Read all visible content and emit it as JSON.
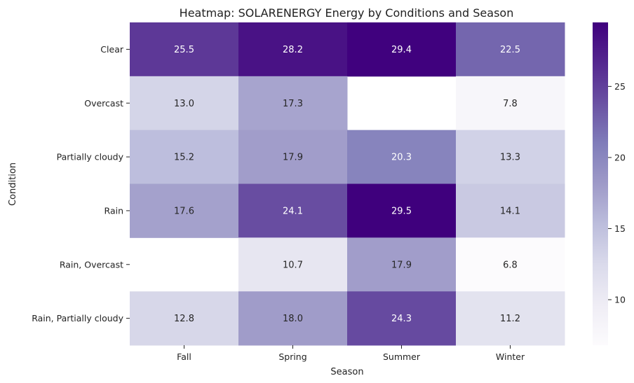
{
  "chart_data": {
    "type": "heatmap",
    "title": "Heatmap: SOLARENERGY Energy by Conditions and Season",
    "xlabel": "Season",
    "ylabel": "Condition",
    "columns": [
      "Fall",
      "Spring",
      "Summer",
      "Winter"
    ],
    "rows": [
      "Clear",
      "Overcast",
      "Partially cloudy",
      "Rain",
      "Rain, Overcast",
      "Rain, Partially cloudy"
    ],
    "values": [
      [
        25.5,
        28.2,
        29.4,
        22.5
      ],
      [
        13.0,
        17.3,
        null,
        7.8
      ],
      [
        15.2,
        17.9,
        20.3,
        13.3
      ],
      [
        17.6,
        24.1,
        29.5,
        14.1
      ],
      [
        null,
        10.7,
        17.9,
        6.8
      ],
      [
        12.8,
        18.0,
        24.3,
        11.2
      ]
    ],
    "colormap": "Purples",
    "color_range": [
      6.8,
      29.5
    ],
    "colorbar_ticks": [
      10,
      15,
      20,
      25
    ]
  }
}
